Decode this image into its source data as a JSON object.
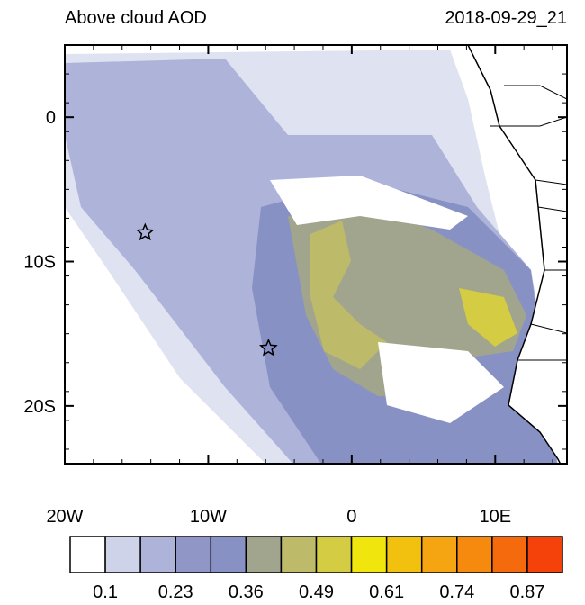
{
  "title": "Above cloud AOD",
  "timestamp": "2018-09-29_21",
  "map": {
    "lon_range": [
      -20,
      15
    ],
    "lat_range": [
      -24,
      5
    ],
    "lon_ticks": [
      {
        "value": -20,
        "label": "20W"
      },
      {
        "value": -10,
        "label": "10W"
      },
      {
        "value": 0,
        "label": "0"
      },
      {
        "value": 10,
        "label": "10E"
      }
    ],
    "lat_ticks": [
      {
        "value": 0,
        "label": "0"
      },
      {
        "value": -10,
        "label": "10S"
      },
      {
        "value": -20,
        "label": "20S"
      }
    ],
    "markers": [
      {
        "lon": -14.4,
        "lat": -8
      },
      {
        "lon": -5.8,
        "lat": -16
      }
    ]
  },
  "colorbar": {
    "colors": [
      "#ffffff",
      "#cfd3ea",
      "#aeb3da",
      "#9097c7",
      "#8791c4",
      "#a1a58e",
      "#bdbb6a",
      "#d4cc42",
      "#f0e60e",
      "#f2c10f",
      "#f5a511",
      "#f58a0e",
      "#f56a0c",
      "#f5420a"
    ],
    "labels": [
      0.1,
      0.23,
      0.36,
      0.49,
      0.61,
      0.74,
      0.87
    ]
  }
}
